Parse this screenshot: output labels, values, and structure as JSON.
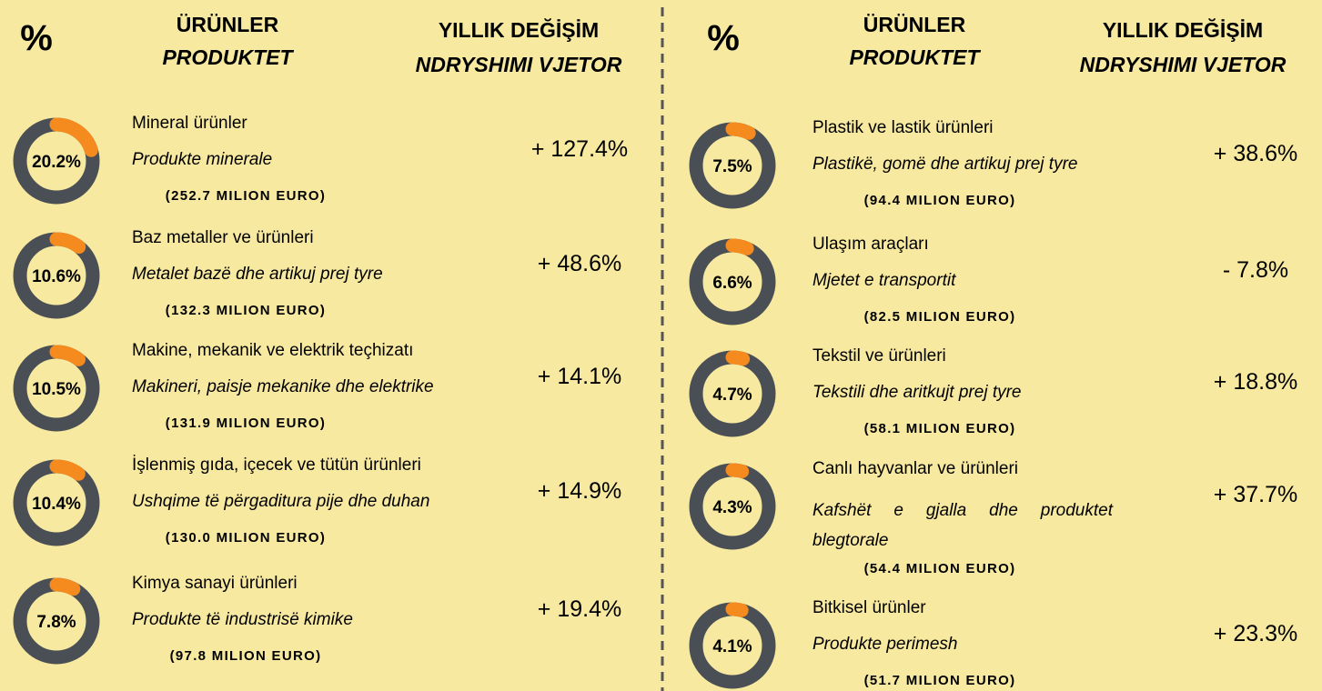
{
  "columns": [
    {
      "header": {
        "percent": "%",
        "products_tr": "ÜRÜNLER",
        "products_sq": "PRODUKTET",
        "change_tr": "YILLIK DEĞİŞİM",
        "change_sq": "NDRYSHIMI VJETOR"
      },
      "items": [
        {
          "share": 20.2,
          "share_label": "20.2%",
          "name_tr": "Mineral ürünler",
          "name_sq": "Produkte minerale",
          "amount": "(252.7 MILION EURO)",
          "change": "+ 127.4%"
        },
        {
          "share": 10.6,
          "share_label": "10.6%",
          "name_tr": "Baz metaller ve ürünleri",
          "name_sq": "Metalet bazë dhe artikuj prej tyre",
          "amount": "(132.3 MILION EURO)",
          "change": "+ 48.6%"
        },
        {
          "share": 10.5,
          "share_label": "10.5%",
          "name_tr": "Makine, mekanik ve elektrik teçhizatı",
          "name_sq": "Makineri, paisje mekanike dhe elektrike",
          "amount": "(131.9 MILION EURO)",
          "change": "+ 14.1%"
        },
        {
          "share": 10.4,
          "share_label": "10.4%",
          "name_tr": "İşlenmiş gıda, içecek ve tütün ürünleri",
          "name_sq": "Ushqime të përgaditura pije dhe duhan",
          "amount": "(130.0 MILION EURO)",
          "change": "+ 14.9%"
        },
        {
          "share": 7.8,
          "share_label": "7.8%",
          "name_tr": "Kimya sanayi ürünleri",
          "name_sq": "Produkte të industrisë kimike",
          "amount": "(97.8 MILION EURO)",
          "change": "+ 19.4%"
        }
      ]
    },
    {
      "header": {
        "percent": "%",
        "products_tr": "ÜRÜNLER",
        "products_sq": "PRODUKTET",
        "change_tr": "YILLIK DEĞİŞİM",
        "change_sq": "NDRYSHIMI VJETOR"
      },
      "items": [
        {
          "share": 7.5,
          "share_label": "7.5%",
          "name_tr": "Plastik ve lastik ürünleri",
          "name_sq": "Plastikë, gomë dhe artikuj prej tyre",
          "amount": "(94.4 MILION EURO)",
          "change": "+ 38.6%"
        },
        {
          "share": 6.6,
          "share_label": "6.6%",
          "name_tr": "Ulaşım araçları",
          "name_sq": "Mjetet e transportit",
          "amount": "(82.5 MILION EURO)",
          "change": "- 7.8%"
        },
        {
          "share": 4.7,
          "share_label": "4.7%",
          "name_tr": "Tekstil ve ürünleri",
          "name_sq": "Tekstili dhe aritkujt prej tyre",
          "amount": "(58.1 MILION EURO)",
          "change": "+ 18.8%"
        },
        {
          "share": 4.3,
          "share_label": "4.3%",
          "name_tr": "Canlı hayvanlar ve ürünleri",
          "name_sq": "Kafshët e gjalla dhe produktet blegtorale",
          "amount": "(54.4 MILION EURO)",
          "change": "+ 37.7%"
        },
        {
          "share": 4.1,
          "share_label": "4.1%",
          "name_tr": "Bitkisel ürünler",
          "name_sq": "Produkte perimesh",
          "amount": "(51.7 MILION EURO)",
          "change": "+ 23.3%"
        }
      ]
    }
  ]
}
